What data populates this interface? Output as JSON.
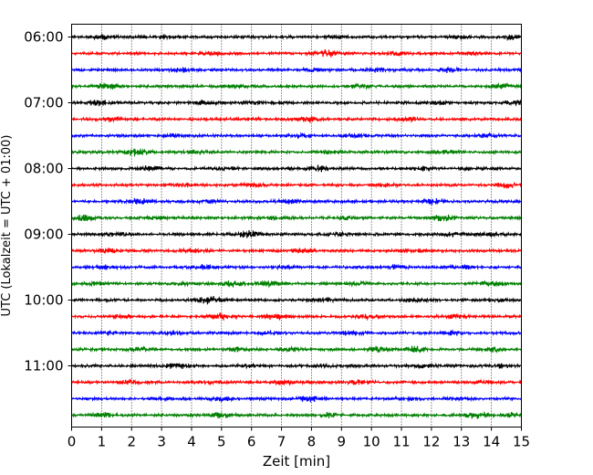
{
  "chart_data": {
    "type": "line",
    "title": "",
    "xlabel": "Zeit  [min]",
    "ylabel": "UTC (Lokalzeit = UTC + 01:00)",
    "xlim": [
      0,
      15
    ],
    "x_ticks": [
      0,
      1,
      2,
      3,
      4,
      5,
      6,
      7,
      8,
      9,
      10,
      11,
      12,
      13,
      14,
      15
    ],
    "x_grid": "dotted",
    "y_ticks": [
      {
        "label": "06:00",
        "trace_index": 0
      },
      {
        "label": "07:00",
        "trace_index": 4
      },
      {
        "label": "08:00",
        "trace_index": 8
      },
      {
        "label": "09:00",
        "trace_index": 12
      },
      {
        "label": "10:00",
        "trace_index": 16
      },
      {
        "label": "11:00",
        "trace_index": 20
      }
    ],
    "trace_interval_min": 15,
    "trace_colors": [
      "#000000",
      "#ff0000",
      "#0000ff",
      "#008000"
    ],
    "series": [
      {
        "start": "06:00",
        "bursts": [
          [
            1.1,
            0.6
          ],
          [
            3.1,
            0.5
          ],
          [
            8.8,
            0.4
          ],
          [
            12.9,
            0.4
          ],
          [
            14.7,
            0.6
          ]
        ]
      },
      {
        "start": "06:15",
        "bursts": [
          [
            4.6,
            0.5
          ],
          [
            8.5,
            0.9
          ],
          [
            10.9,
            0.6
          ],
          [
            13.4,
            0.4
          ]
        ]
      },
      {
        "start": "06:30",
        "bursts": [
          [
            3.6,
            0.5
          ],
          [
            8.1,
            0.6
          ],
          [
            10.2,
            0.5
          ],
          [
            12.6,
            0.7
          ]
        ]
      },
      {
        "start": "06:45",
        "bursts": [
          [
            1.2,
            0.8
          ],
          [
            5.5,
            0.5
          ],
          [
            9.6,
            0.5
          ],
          [
            14.3,
            0.6
          ]
        ]
      },
      {
        "start": "07:00",
        "bursts": [
          [
            0.9,
            0.7
          ],
          [
            4.4,
            0.5
          ],
          [
            6.2,
            0.4
          ],
          [
            12.2,
            0.5
          ],
          [
            14.9,
            0.8
          ]
        ]
      },
      {
        "start": "07:15",
        "bursts": [
          [
            1.3,
            0.6
          ],
          [
            5.9,
            0.4
          ],
          [
            7.9,
            0.8
          ],
          [
            11.3,
            0.5
          ]
        ]
      },
      {
        "start": "07:30",
        "bursts": [
          [
            3.5,
            0.5
          ],
          [
            7.6,
            0.5
          ],
          [
            9.4,
            0.6
          ],
          [
            13.8,
            0.4
          ]
        ]
      },
      {
        "start": "07:45",
        "bursts": [
          [
            2.2,
            1.0
          ],
          [
            4.1,
            0.6
          ],
          [
            8.6,
            0.5
          ],
          [
            12.5,
            0.5
          ]
        ]
      },
      {
        "start": "08:00",
        "bursts": [
          [
            2.6,
            0.8
          ],
          [
            5.1,
            0.5
          ],
          [
            8.2,
            0.8
          ],
          [
            11.7,
            0.5
          ],
          [
            13.3,
            0.4
          ]
        ]
      },
      {
        "start": "08:15",
        "bursts": [
          [
            3.7,
            0.8
          ],
          [
            6.1,
            0.5
          ],
          [
            10.4,
            0.5
          ],
          [
            14.5,
            0.7
          ]
        ]
      },
      {
        "start": "08:30",
        "bursts": [
          [
            2.3,
            0.9
          ],
          [
            4.6,
            0.5
          ],
          [
            7.2,
            0.5
          ],
          [
            12.1,
            0.8
          ]
        ]
      },
      {
        "start": "08:45",
        "bursts": [
          [
            0.4,
            0.8
          ],
          [
            2.8,
            0.5
          ],
          [
            6.7,
            0.5
          ],
          [
            9.1,
            0.5
          ],
          [
            12.4,
            0.8
          ]
        ]
      },
      {
        "start": "09:00",
        "bursts": [
          [
            1.5,
            0.5
          ],
          [
            5.9,
            1.0
          ],
          [
            8.9,
            0.5
          ],
          [
            12.8,
            0.6
          ],
          [
            14.1,
            0.5
          ]
        ]
      },
      {
        "start": "09:15",
        "bursts": [
          [
            1.2,
            0.6
          ],
          [
            4.0,
            0.5
          ],
          [
            7.6,
            0.6
          ],
          [
            11.4,
            0.5
          ]
        ]
      },
      {
        "start": "09:30",
        "bursts": [
          [
            1.1,
            0.5
          ],
          [
            4.4,
            0.7
          ],
          [
            7.0,
            0.5
          ],
          [
            10.8,
            0.6
          ],
          [
            13.1,
            0.5
          ]
        ]
      },
      {
        "start": "09:45",
        "bursts": [
          [
            0.9,
            0.4
          ],
          [
            3.8,
            0.5
          ],
          [
            5.4,
            0.8
          ],
          [
            6.6,
            0.7
          ],
          [
            9.5,
            0.5
          ],
          [
            14.0,
            0.7
          ]
        ]
      },
      {
        "start": "10:00",
        "bursts": [
          [
            4.6,
            1.0
          ],
          [
            8.4,
            0.6
          ],
          [
            11.4,
            0.5
          ],
          [
            14.2,
            0.5
          ]
        ]
      },
      {
        "start": "10:15",
        "bursts": [
          [
            1.6,
            0.5
          ],
          [
            5.0,
            0.9
          ],
          [
            6.8,
            0.9
          ],
          [
            9.9,
            0.6
          ],
          [
            12.8,
            0.5
          ]
        ]
      },
      {
        "start": "10:30",
        "bursts": [
          [
            1.2,
            0.6
          ],
          [
            3.4,
            0.5
          ],
          [
            6.6,
            0.5
          ],
          [
            9.3,
            0.5
          ],
          [
            12.7,
            0.6
          ]
        ]
      },
      {
        "start": "10:45",
        "bursts": [
          [
            2.2,
            0.5
          ],
          [
            5.5,
            0.5
          ],
          [
            7.3,
            0.6
          ],
          [
            10.3,
            0.9
          ],
          [
            11.5,
            0.8
          ],
          [
            14.0,
            0.6
          ]
        ]
      },
      {
        "start": "11:00",
        "bursts": [
          [
            3.5,
            0.9
          ],
          [
            6.0,
            0.5
          ],
          [
            8.5,
            0.6
          ],
          [
            11.8,
            0.5
          ],
          [
            14.3,
            0.5
          ]
        ]
      },
      {
        "start": "11:15",
        "bursts": [
          [
            1.9,
            0.6
          ],
          [
            4.5,
            0.4
          ],
          [
            7.1,
            0.6
          ],
          [
            9.6,
            0.7
          ],
          [
            13.7,
            0.5
          ]
        ]
      },
      {
        "start": "11:30",
        "bursts": [
          [
            3.0,
            0.5
          ],
          [
            5.0,
            0.5
          ],
          [
            7.9,
            0.8
          ],
          [
            11.2,
            0.5
          ],
          [
            12.9,
            0.5
          ]
        ]
      },
      {
        "start": "11:45",
        "bursts": [
          [
            1.1,
            0.6
          ],
          [
            5.0,
            0.7
          ],
          [
            8.6,
            0.6
          ],
          [
            13.5,
            0.9
          ],
          [
            14.7,
            0.6
          ]
        ]
      }
    ]
  }
}
